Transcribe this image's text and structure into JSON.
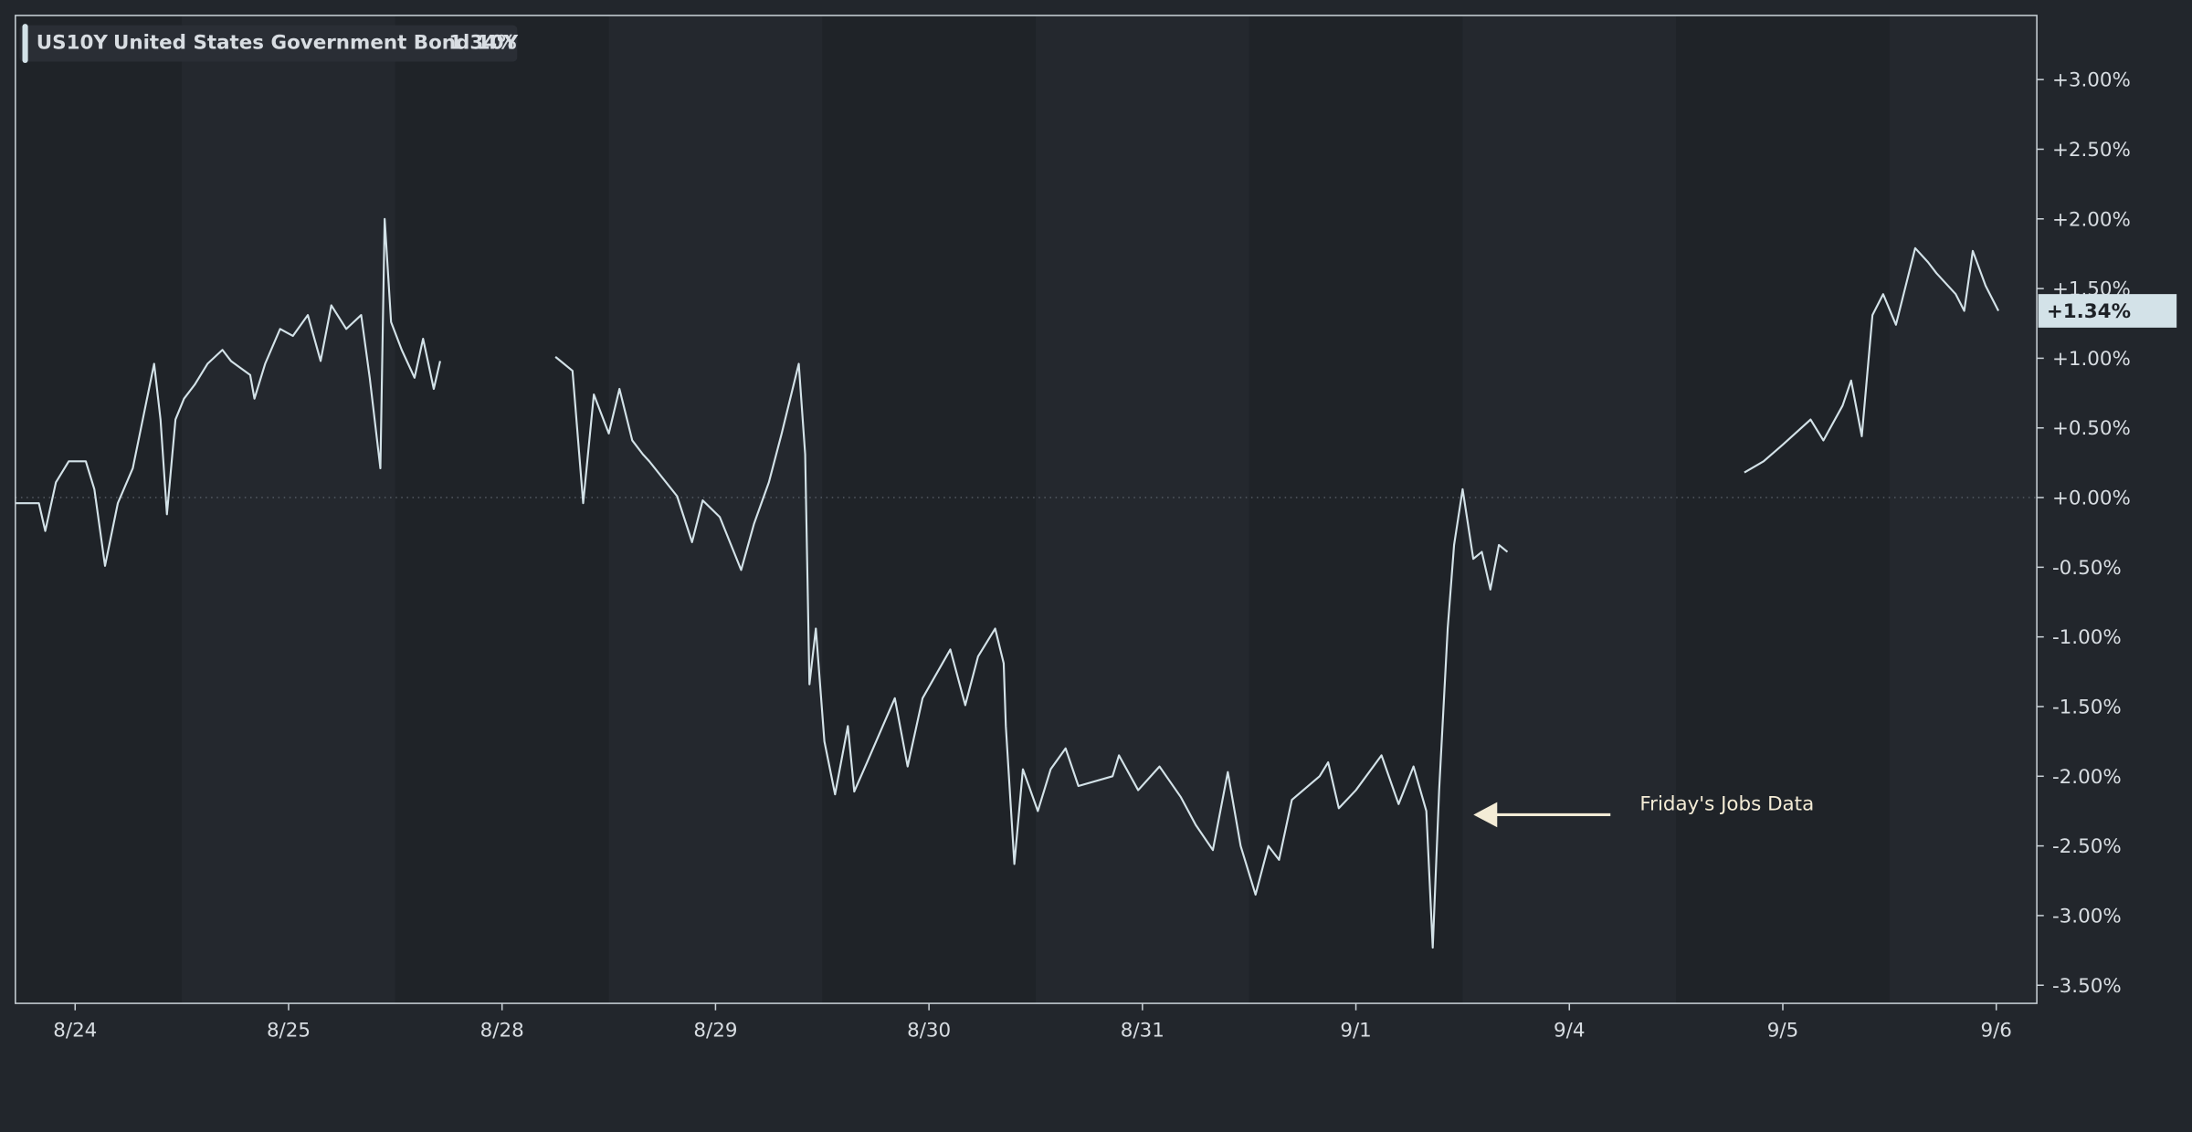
{
  "chart_data": {
    "type": "line",
    "symbol": "US10Y",
    "series": [
      {
        "name": "United States Government Bond 10Y",
        "color": "#d3e2e8",
        "x": [
          -0.28,
          -0.17,
          -0.14,
          -0.09,
          -0.03,
          0.05,
          0.09,
          0.14,
          0.2,
          0.27,
          0.31,
          0.37,
          0.4,
          0.43,
          0.47,
          0.51,
          0.56,
          0.62,
          0.69,
          0.73,
          0.82,
          0.84,
          0.89,
          0.96,
          1.02,
          1.09,
          1.15,
          1.2,
          1.27,
          1.34,
          1.38,
          1.43,
          1.45,
          1.48,
          1.53,
          1.59,
          1.63,
          1.68,
          1.71,
          null,
          2.25,
          2.33,
          2.38,
          2.43,
          2.5,
          2.55,
          2.61,
          2.66,
          2.69,
          2.82,
          2.89,
          2.94,
          3.02,
          3.12,
          3.18,
          3.25,
          3.31,
          3.39,
          3.42,
          3.44,
          3.47,
          3.51,
          3.56,
          3.62,
          3.65,
          3.71,
          3.84,
          3.9,
          3.97,
          4.1,
          4.17,
          4.23,
          4.31,
          4.35,
          4.36,
          4.4,
          4.44,
          4.51,
          4.57,
          4.64,
          4.7,
          4.86,
          4.89,
          4.98,
          5.08,
          5.18,
          5.25,
          5.33,
          5.4,
          5.46,
          5.53,
          5.59,
          5.64,
          5.7,
          5.83,
          5.87,
          5.92,
          6.0,
          6.12,
          6.2,
          6.27,
          6.33,
          6.36,
          6.39,
          6.43,
          6.46,
          6.5,
          6.55,
          6.59,
          6.63,
          6.67,
          6.71,
          null,
          7.82,
          7.91,
          8.0,
          8.13,
          8.19,
          8.28,
          8.32,
          8.37,
          8.42,
          8.47,
          8.53,
          8.62,
          8.68,
          8.72,
          8.81,
          8.85,
          8.89,
          8.95,
          9.01
        ],
        "values": [
          -0.04,
          -0.04,
          -0.24,
          0.11,
          0.26,
          0.26,
          0.06,
          -0.49,
          -0.04,
          0.21,
          0.51,
          0.96,
          0.56,
          -0.12,
          0.56,
          0.71,
          0.81,
          0.96,
          1.06,
          0.98,
          0.88,
          0.71,
          0.96,
          1.21,
          1.16,
          1.31,
          0.98,
          1.38,
          1.21,
          1.31,
          0.86,
          0.21,
          2.0,
          1.26,
          1.06,
          0.86,
          1.14,
          0.78,
          0.98,
          null,
          1.01,
          0.91,
          -0.04,
          0.74,
          0.46,
          0.78,
          0.41,
          0.31,
          0.26,
          0.01,
          -0.32,
          -0.02,
          -0.14,
          -0.52,
          -0.19,
          0.11,
          0.46,
          0.96,
          0.31,
          -1.34,
          -0.94,
          -1.75,
          -2.13,
          -1.64,
          -2.11,
          -1.9,
          -1.44,
          -1.93,
          -1.44,
          -1.09,
          -1.49,
          -1.14,
          -0.94,
          -1.19,
          -1.64,
          -2.63,
          -1.95,
          -2.25,
          -1.95,
          -1.8,
          -2.07,
          -2.0,
          -1.85,
          -2.1,
          -1.93,
          -2.15,
          -2.35,
          -2.53,
          -1.97,
          -2.5,
          -2.85,
          -2.5,
          -2.6,
          -2.17,
          -2.0,
          -1.9,
          -2.23,
          -2.1,
          -1.85,
          -2.2,
          -1.93,
          -2.25,
          -3.23,
          -2.1,
          -0.94,
          -0.34,
          0.06,
          -0.44,
          -0.39,
          -0.66,
          -0.34,
          -0.39,
          null,
          0.18,
          0.26,
          0.38,
          0.56,
          0.41,
          0.66,
          0.84,
          0.44,
          1.31,
          1.46,
          1.24,
          1.79,
          1.69,
          1.61,
          1.46,
          1.34,
          1.77,
          1.52,
          1.34
        ]
      }
    ],
    "last_value": {
      "value": 1.34,
      "label": "1.34%",
      "tag": "+1.34%"
    },
    "annotation": "Friday's Jobs Data",
    "xlim": [
      -0.28,
      9.19
    ],
    "xticks": [
      {
        "value": 0,
        "label": "8/24"
      },
      {
        "value": 1,
        "label": "8/25"
      },
      {
        "value": 2,
        "label": "8/28"
      },
      {
        "value": 3,
        "label": "8/29"
      },
      {
        "value": 4,
        "label": "8/30"
      },
      {
        "value": 5,
        "label": "8/31"
      },
      {
        "value": 6,
        "label": "9/1"
      },
      {
        "value": 7,
        "label": "9/4"
      },
      {
        "value": 8,
        "label": "9/5"
      },
      {
        "value": 9,
        "label": "9/6"
      }
    ],
    "ylim": [
      -3.63,
      3.46
    ],
    "yticks": [
      {
        "value": 3,
        "label": "+3.00%"
      },
      {
        "value": 2.5,
        "label": "+2.50%"
      },
      {
        "value": 2,
        "label": "+2.00%"
      },
      {
        "value": 1.5,
        "label": "+1.50%"
      },
      {
        "value": 1,
        "label": "+1.00%"
      },
      {
        "value": 0.5,
        "label": "+0.50%"
      },
      {
        "value": 0,
        "label": "+0.00%"
      },
      {
        "value": -0.5,
        "label": "-0.50%"
      },
      {
        "value": -1,
        "label": "-1.00%"
      },
      {
        "value": -1.5,
        "label": "-1.50%"
      },
      {
        "value": -2,
        "label": "-2.00%"
      },
      {
        "value": -2.5,
        "label": "-2.50%"
      },
      {
        "value": -3,
        "label": "-3.00%"
      },
      {
        "value": -3.5,
        "label": "-3.50%"
      }
    ]
  }
}
